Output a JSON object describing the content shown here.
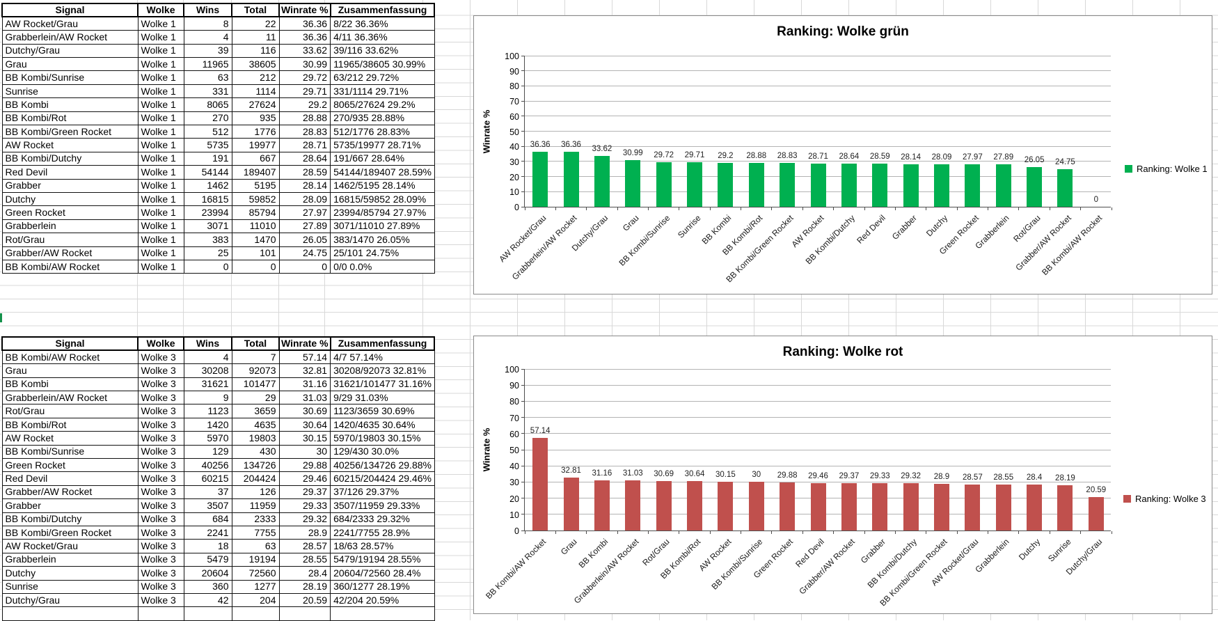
{
  "colors": {
    "selection_marker": "#14914b",
    "table_border": "#111111"
  },
  "tables": [
    {
      "headers": [
        "Signal",
        "Wolke",
        "Wins",
        "Total",
        "Winrate %",
        "Zusammenfassung"
      ],
      "rows": [
        [
          "AW Rocket/Grau",
          "Wolke 1",
          "8",
          "22",
          "36.36",
          "8/22 36.36%"
        ],
        [
          "Grabberlein/AW Rocket",
          "Wolke 1",
          "4",
          "11",
          "36.36",
          "4/11 36.36%"
        ],
        [
          "Dutchy/Grau",
          "Wolke 1",
          "39",
          "116",
          "33.62",
          "39/116 33.62%"
        ],
        [
          "Grau",
          "Wolke 1",
          "11965",
          "38605",
          "30.99",
          "11965/38605 30.99%"
        ],
        [
          "BB Kombi/Sunrise",
          "Wolke 1",
          "63",
          "212",
          "29.72",
          "63/212 29.72%"
        ],
        [
          "Sunrise",
          "Wolke 1",
          "331",
          "1114",
          "29.71",
          "331/1114 29.71%"
        ],
        [
          "BB Kombi",
          "Wolke 1",
          "8065",
          "27624",
          "29.2",
          "8065/27624 29.2%"
        ],
        [
          "BB Kombi/Rot",
          "Wolke 1",
          "270",
          "935",
          "28.88",
          "270/935 28.88%"
        ],
        [
          "BB Kombi/Green Rocket",
          "Wolke 1",
          "512",
          "1776",
          "28.83",
          "512/1776 28.83%"
        ],
        [
          "AW Rocket",
          "Wolke 1",
          "5735",
          "19977",
          "28.71",
          "5735/19977 28.71%"
        ],
        [
          "BB Kombi/Dutchy",
          "Wolke 1",
          "191",
          "667",
          "28.64",
          "191/667 28.64%"
        ],
        [
          "Red Devil",
          "Wolke 1",
          "54144",
          "189407",
          "28.59",
          "54144/189407 28.59%"
        ],
        [
          "Grabber",
          "Wolke 1",
          "1462",
          "5195",
          "28.14",
          "1462/5195 28.14%"
        ],
        [
          "Dutchy",
          "Wolke 1",
          "16815",
          "59852",
          "28.09",
          "16815/59852 28.09%"
        ],
        [
          "Green Rocket",
          "Wolke 1",
          "23994",
          "85794",
          "27.97",
          "23994/85794 27.97%"
        ],
        [
          "Grabberlein",
          "Wolke 1",
          "3071",
          "11010",
          "27.89",
          "3071/11010 27.89%"
        ],
        [
          "Rot/Grau",
          "Wolke 1",
          "383",
          "1470",
          "26.05",
          "383/1470 26.05%"
        ],
        [
          "Grabber/AW Rocket",
          "Wolke 1",
          "25",
          "101",
          "24.75",
          "25/101 24.75%"
        ],
        [
          "BB Kombi/AW Rocket",
          "Wolke 1",
          "0",
          "0",
          "0",
          "0/0 0.0%"
        ]
      ]
    },
    {
      "headers": [
        "Signal",
        "Wolke",
        "Wins",
        "Total",
        "Winrate %",
        "Zusammenfassung"
      ],
      "rows": [
        [
          "BB Kombi/AW Rocket",
          "Wolke 3",
          "4",
          "7",
          "57.14",
          "4/7 57.14%"
        ],
        [
          "Grau",
          "Wolke 3",
          "30208",
          "92073",
          "32.81",
          "30208/92073 32.81%"
        ],
        [
          "BB Kombi",
          "Wolke 3",
          "31621",
          "101477",
          "31.16",
          "31621/101477 31.16%"
        ],
        [
          "Grabberlein/AW Rocket",
          "Wolke 3",
          "9",
          "29",
          "31.03",
          "9/29 31.03%"
        ],
        [
          "Rot/Grau",
          "Wolke 3",
          "1123",
          "3659",
          "30.69",
          "1123/3659 30.69%"
        ],
        [
          "BB Kombi/Rot",
          "Wolke 3",
          "1420",
          "4635",
          "30.64",
          "1420/4635 30.64%"
        ],
        [
          "AW Rocket",
          "Wolke 3",
          "5970",
          "19803",
          "30.15",
          "5970/19803 30.15%"
        ],
        [
          "BB Kombi/Sunrise",
          "Wolke 3",
          "129",
          "430",
          "30",
          "129/430 30.0%"
        ],
        [
          "Green Rocket",
          "Wolke 3",
          "40256",
          "134726",
          "29.88",
          "40256/134726 29.88%"
        ],
        [
          "Red Devil",
          "Wolke 3",
          "60215",
          "204424",
          "29.46",
          "60215/204424 29.46%"
        ],
        [
          "Grabber/AW Rocket",
          "Wolke 3",
          "37",
          "126",
          "29.37",
          "37/126 29.37%"
        ],
        [
          "Grabber",
          "Wolke 3",
          "3507",
          "11959",
          "29.33",
          "3507/11959 29.33%"
        ],
        [
          "BB Kombi/Dutchy",
          "Wolke 3",
          "684",
          "2333",
          "29.32",
          "684/2333 29.32%"
        ],
        [
          "BB Kombi/Green Rocket",
          "Wolke 3",
          "2241",
          "7755",
          "28.9",
          "2241/7755 28.9%"
        ],
        [
          "AW Rocket/Grau",
          "Wolke 3",
          "18",
          "63",
          "28.57",
          "18/63 28.57%"
        ],
        [
          "Grabberlein",
          "Wolke 3",
          "5479",
          "19194",
          "28.55",
          "5479/19194 28.55%"
        ],
        [
          "Dutchy",
          "Wolke 3",
          "20604",
          "72560",
          "28.4",
          "20604/72560 28.4%"
        ],
        [
          "Sunrise",
          "Wolke 3",
          "360",
          "1277",
          "28.19",
          "360/1277 28.19%"
        ],
        [
          "Dutchy/Grau",
          "Wolke 3",
          "42",
          "204",
          "20.59",
          "42/204 20.59%"
        ],
        [
          "",
          "",
          "",
          "",
          "",
          ""
        ]
      ]
    }
  ],
  "chart_data": [
    {
      "type": "bar",
      "title": "Ranking: Wolke grün",
      "ylabel": "Winrate %",
      "xlabel": "",
      "ylim": [
        0,
        100
      ],
      "ytick_step": 10,
      "grid": true,
      "legend": "Ranking: Wolke 1",
      "legend_position": "right",
      "bar_color": "#00B050",
      "categories": [
        "AW Rocket/Grau",
        "Grabberlein/AW Rocket",
        "Dutchy/Grau",
        "Grau",
        "BB Kombi/Sunrise",
        "Sunrise",
        "BB Kombi",
        "BB Kombi/Rot",
        "BB Kombi/Green Rocket",
        "AW Rocket",
        "BB Kombi/Dutchy",
        "Red Devil",
        "Grabber",
        "Dutchy",
        "Green Rocket",
        "Grabberlein",
        "Rot/Grau",
        "Grabber/AW Rocket",
        "BB Kombi/AW Rocket"
      ],
      "values": [
        36.36,
        36.36,
        33.62,
        30.99,
        29.72,
        29.71,
        29.2,
        28.88,
        28.83,
        28.71,
        28.64,
        28.59,
        28.14,
        28.09,
        27.97,
        27.89,
        26.05,
        24.75,
        0
      ],
      "labels": [
        "36.36",
        "36.36",
        "33.62",
        "30.99",
        "29.72",
        "29.71",
        "29.2",
        "28.88",
        "28.83",
        "28.71",
        "28.64",
        "28.59",
        "28.14",
        "28.09",
        "27.97",
        "27.89",
        "26.05",
        "24.75",
        "0"
      ]
    },
    {
      "type": "bar",
      "title": "Ranking: Wolke rot",
      "ylabel": "Winrate %",
      "xlabel": "",
      "ylim": [
        0,
        100
      ],
      "ytick_step": 10,
      "grid": true,
      "legend": "Ranking: Wolke 3",
      "legend_position": "right",
      "bar_color": "#C0504D",
      "categories": [
        "BB Kombi/AW Rocket",
        "Grau",
        "BB Kombi",
        "Grabberlein/AW Rocket",
        "Rot/Grau",
        "BB Kombi/Rot",
        "AW Rocket",
        "BB Kombi/Sunrise",
        "Green Rocket",
        "Red Devil",
        "Grabber/AW Rocket",
        "Grabber",
        "BB Kombi/Dutchy",
        "BB Kombi/Green Rocket",
        "AW Rocket/Grau",
        "Grabberlein",
        "Dutchy",
        "Sunrise",
        "Dutchy/Grau"
      ],
      "values": [
        57.14,
        32.81,
        31.16,
        31.03,
        30.69,
        30.64,
        30.15,
        30,
        29.88,
        29.46,
        29.37,
        29.33,
        29.32,
        28.9,
        28.57,
        28.55,
        28.4,
        28.19,
        20.59
      ],
      "labels": [
        "57.14",
        "32.81",
        "31.16",
        "31.03",
        "30.69",
        "30.64",
        "30.15",
        "30",
        "29.88",
        "29.46",
        "29.37",
        "29.33",
        "29.32",
        "28.9",
        "28.57",
        "28.55",
        "28.4",
        "28.19",
        "20.59"
      ]
    }
  ]
}
